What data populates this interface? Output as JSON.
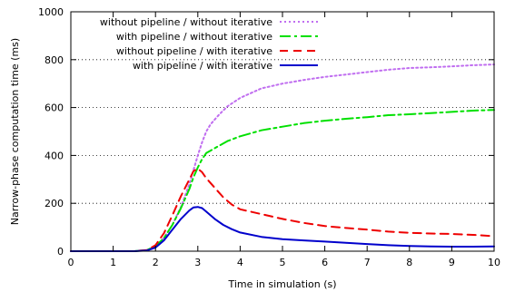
{
  "chart_data": {
    "type": "line",
    "title": "",
    "xlabel": "Time in simulation (s)",
    "ylabel": "Narrow-phase computation time (ms)",
    "xlim": [
      0,
      10
    ],
    "ylim": [
      0,
      1000
    ],
    "xticks": [
      0,
      1,
      2,
      3,
      4,
      5,
      6,
      7,
      8,
      9,
      10
    ],
    "yticks": [
      0,
      200,
      400,
      600,
      800,
      1000
    ],
    "grid": "horizontal dotted",
    "legend_position": "top-left",
    "series": [
      {
        "name": "without pipeline / without iterative",
        "color": "#c06ef0",
        "dash": "dotted",
        "x": [
          0,
          1,
          1.5,
          1.8,
          2.0,
          2.2,
          2.4,
          2.6,
          2.8,
          2.9,
          3.0,
          3.1,
          3.2,
          3.3,
          3.5,
          3.7,
          4.0,
          4.5,
          5,
          5.5,
          6,
          6.5,
          7,
          7.5,
          8,
          8.5,
          9,
          9.5,
          10
        ],
        "y": [
          0,
          0,
          0,
          5,
          20,
          55,
          110,
          185,
          280,
          340,
          400,
          455,
          500,
          530,
          570,
          605,
          640,
          680,
          700,
          715,
          728,
          738,
          748,
          758,
          765,
          768,
          772,
          777,
          780
        ]
      },
      {
        "name": "with pipeline / without iterative",
        "color": "#00e000",
        "dash": "dash-dot",
        "x": [
          0,
          1,
          1.5,
          1.8,
          2.0,
          2.2,
          2.4,
          2.6,
          2.8,
          2.9,
          3.0,
          3.1,
          3.2,
          3.3,
          3.5,
          3.7,
          4.0,
          4.5,
          5,
          5.5,
          6,
          6.5,
          7,
          7.5,
          8,
          8.5,
          9,
          9.5,
          10
        ],
        "y": [
          0,
          0,
          0,
          5,
          20,
          55,
          110,
          180,
          260,
          310,
          350,
          385,
          410,
          420,
          440,
          460,
          480,
          505,
          520,
          535,
          545,
          553,
          560,
          568,
          572,
          577,
          582,
          587,
          590
        ]
      },
      {
        "name": "without pipeline / with iterative",
        "color": "#ee0000",
        "dash": "dashed",
        "x": [
          0,
          1,
          1.5,
          1.8,
          2.0,
          2.2,
          2.4,
          2.6,
          2.8,
          2.9,
          3.0,
          3.1,
          3.2,
          3.4,
          3.6,
          3.8,
          4.0,
          4.5,
          5,
          5.5,
          6,
          6.5,
          7,
          7.5,
          8,
          8.5,
          9,
          9.5,
          10
        ],
        "y": [
          0,
          0,
          0,
          5,
          25,
          75,
          150,
          230,
          300,
          335,
          345,
          330,
          305,
          265,
          225,
          195,
          175,
          155,
          135,
          118,
          105,
          97,
          90,
          82,
          77,
          74,
          72,
          68,
          63
        ]
      },
      {
        "name": "with pipeline / with iterative",
        "color": "#0000cc",
        "dash": "solid",
        "x": [
          0,
          1,
          1.5,
          1.8,
          2.0,
          2.2,
          2.4,
          2.6,
          2.8,
          2.9,
          3.0,
          3.1,
          3.2,
          3.4,
          3.6,
          3.8,
          4.0,
          4.5,
          5,
          5.5,
          6,
          6.5,
          7,
          7.5,
          8,
          8.5,
          9,
          9.5,
          10
        ],
        "y": [
          0,
          0,
          0,
          3,
          15,
          45,
          90,
          135,
          170,
          183,
          185,
          180,
          165,
          135,
          110,
          92,
          78,
          60,
          50,
          45,
          40,
          35,
          30,
          25,
          22,
          20,
          19,
          19,
          20
        ]
      }
    ]
  }
}
